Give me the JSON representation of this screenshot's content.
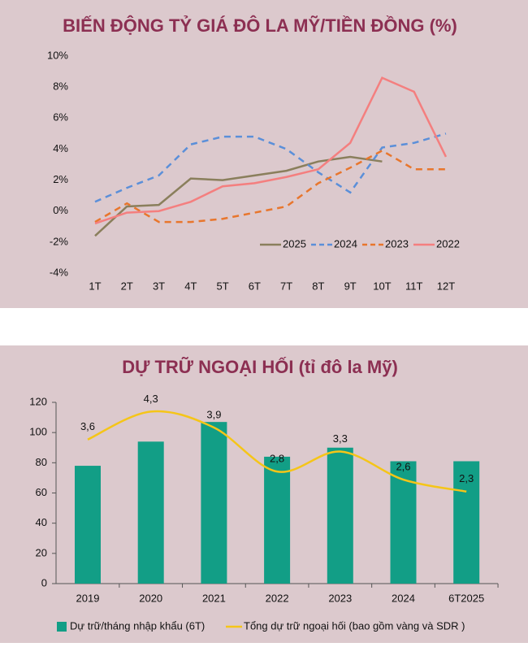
{
  "chart_data": [
    {
      "type": "line",
      "title": "BIẾN ĐỘNG TỶ GIÁ ĐÔ LA MỸ/TIỀN ĐỒNG (%)",
      "categories": [
        "1T",
        "2T",
        "3T",
        "4T",
        "5T",
        "6T",
        "7T",
        "8T",
        "9T",
        "10T",
        "11T",
        "12T"
      ],
      "ylim": [
        -4,
        10
      ],
      "yticks": [
        {
          "value": -4,
          "label": "-4%"
        },
        {
          "value": -2,
          "label": "-2%"
        },
        {
          "value": 0,
          "label": "0%"
        },
        {
          "value": 2,
          "label": "2%"
        },
        {
          "value": 4,
          "label": "4%"
        },
        {
          "value": 6,
          "label": "6%"
        },
        {
          "value": 8,
          "label": "8%"
        },
        {
          "value": 10,
          "label": "10%"
        }
      ],
      "legend": "lower-right",
      "series": [
        {
          "name": "2025",
          "color": "#8a7f5c",
          "dashed": false,
          "values": [
            -1.6,
            0.3,
            0.4,
            2.1,
            2.0,
            2.3,
            2.6,
            3.2,
            3.5,
            3.2,
            null,
            null
          ]
        },
        {
          "name": "2024",
          "color": "#5b8fd9",
          "dashed": true,
          "values": [
            0.6,
            1.5,
            2.3,
            4.3,
            4.8,
            4.8,
            4.0,
            2.5,
            1.2,
            4.1,
            4.4,
            5.0
          ]
        },
        {
          "name": "2023",
          "color": "#e8762d",
          "dashed": true,
          "values": [
            -0.7,
            0.5,
            -0.7,
            -0.7,
            -0.5,
            -0.1,
            0.3,
            1.8,
            2.8,
            3.9,
            2.7,
            2.7
          ]
        },
        {
          "name": "2022",
          "color": "#f47f7f",
          "dashed": false,
          "values": [
            -0.8,
            -0.1,
            0.0,
            0.6,
            1.6,
            1.8,
            2.2,
            2.7,
            4.4,
            8.6,
            7.7,
            3.5
          ]
        }
      ]
    },
    {
      "type": "bar",
      "title": "DỰ TRỮ NGOẠI HỐI (tỉ đô la Mỹ)",
      "categories": [
        "2019",
        "2020",
        "2021",
        "2022",
        "2023",
        "2024",
        "6T2025"
      ],
      "ylim": [
        0,
        120
      ],
      "yticks": [
        0,
        20,
        40,
        60,
        80,
        100,
        120
      ],
      "y2lim": [
        0,
        4.53
      ],
      "legend": "bottom",
      "series": [
        {
          "name": "Dự trữ/tháng nhập khẩu (6T)",
          "color": "#129e86",
          "type": "bar",
          "values": [
            78,
            94,
            107,
            84,
            90,
            81,
            81
          ]
        },
        {
          "name": "Tổng dự trữ ngoại hối (bao gồm vàng và SDR )",
          "color": "#f5c518",
          "type": "line",
          "axis": "y2",
          "smooth": true,
          "values": [
            3.6,
            4.3,
            3.9,
            2.8,
            3.3,
            2.6,
            2.3
          ],
          "value_labels": [
            "3,6",
            "4,3",
            "3,9",
            "2,8",
            "3,3",
            "2,6",
            "2,3"
          ]
        }
      ]
    }
  ]
}
